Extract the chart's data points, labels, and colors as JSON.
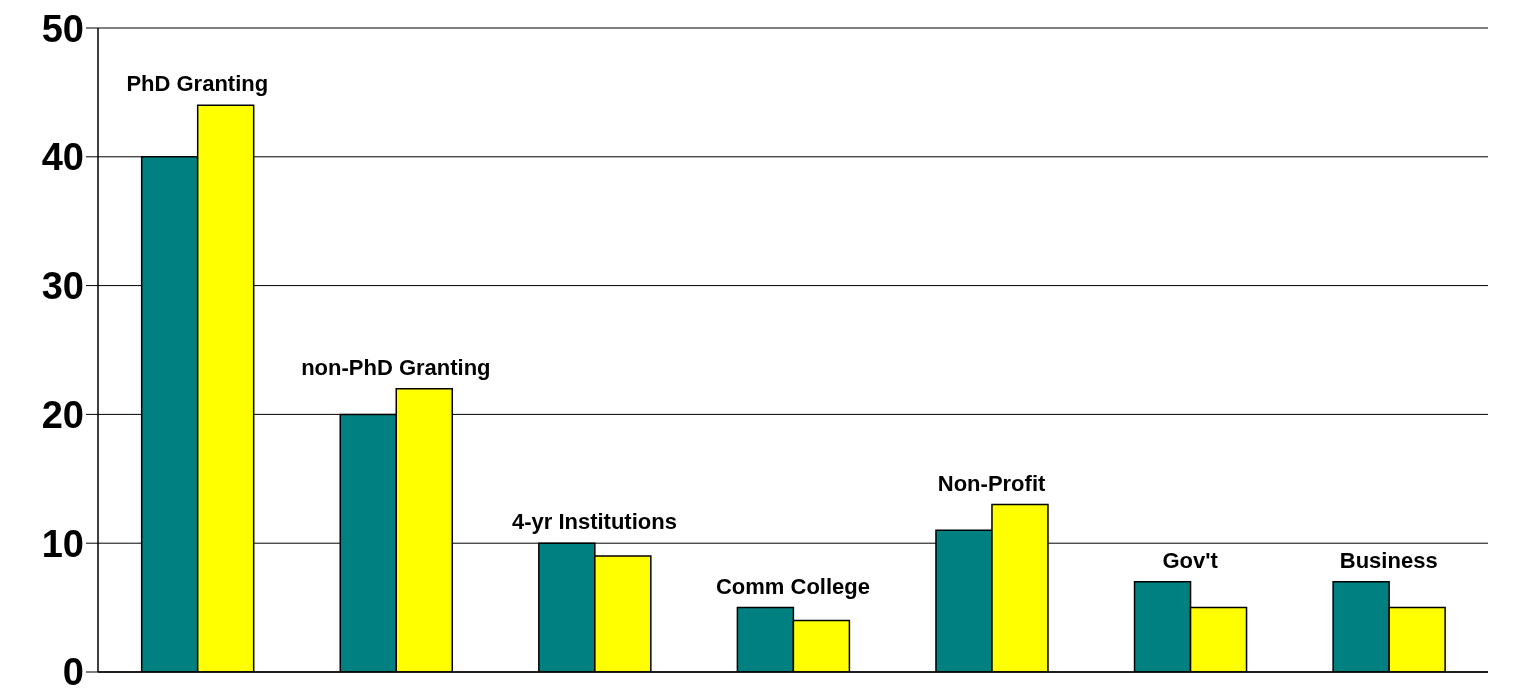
{
  "chart_data": {
    "type": "bar",
    "categories": [
      "PhD Granting",
      "non-PhD Granting",
      "4-yr Institutions",
      "Comm College",
      "Non-Profit",
      "Gov't",
      "Business"
    ],
    "series": [
      {
        "color": "#008080",
        "values": [
          40,
          20,
          10,
          5,
          11,
          7,
          7
        ]
      },
      {
        "color": "#ffff00",
        "values": [
          44,
          22,
          9,
          4,
          13,
          5,
          5
        ]
      }
    ],
    "ylim": [
      0,
      50
    ],
    "yticks": [
      0,
      10,
      20,
      30,
      40,
      50
    ],
    "grid": "y",
    "legend": false
  }
}
